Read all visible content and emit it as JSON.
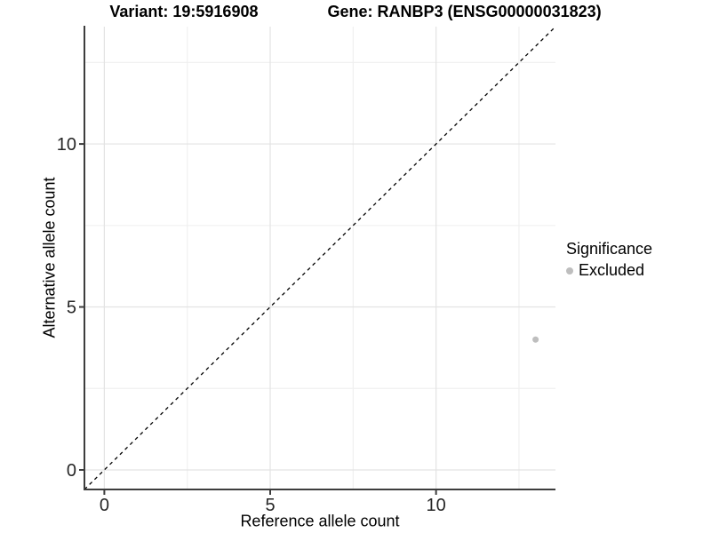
{
  "header": {
    "variant_title": "Variant: 19:5916908",
    "gene_title": "Gene: RANBP3 (ENSG00000031823)"
  },
  "chart_data": {
    "type": "scatter",
    "title": "Variant: 19:5916908   Gene: RANBP3 (ENSG00000031823)",
    "xlabel": "Reference allele count",
    "ylabel": "Alternative allele count",
    "xlim": [
      -0.6,
      13.6
    ],
    "ylim": [
      -0.6,
      13.6
    ],
    "x_ticks": [
      0,
      5,
      10
    ],
    "y_ticks": [
      0,
      5,
      10
    ],
    "x_minor_ticks": [
      2.5,
      7.5,
      12.5
    ],
    "y_minor_ticks": [
      2.5,
      7.5,
      12.5
    ],
    "grid": "major and minor gridlines, white background",
    "reference_line": {
      "type": "identity",
      "equation": "y = x",
      "style": "dashed",
      "color": "#000000"
    },
    "series": [
      {
        "name": "Excluded",
        "color": "#bebebe",
        "points": [
          {
            "x": 13,
            "y": 4
          }
        ]
      }
    ],
    "legend": {
      "title": "Significance",
      "position": "right",
      "items": [
        {
          "label": "Excluded",
          "color": "#bebebe"
        }
      ]
    }
  },
  "colors": {
    "background": "#ffffff",
    "axis_line": "#3d3d3d",
    "tick_mark": "#3d3d3d",
    "tick_label": "#262626",
    "grid_major": "#e3e3e3",
    "grid_minor": "#f0f0f0",
    "point": "#bebebe",
    "identity_line": "#000000"
  }
}
